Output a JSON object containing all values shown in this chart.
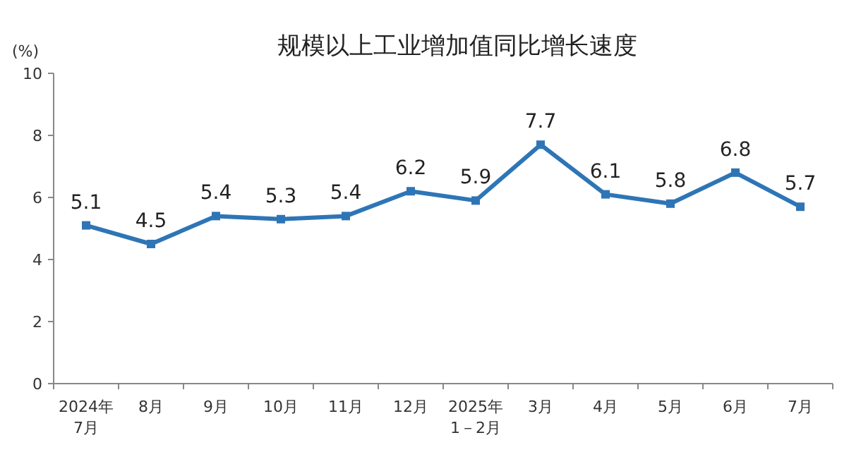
{
  "chart_data": {
    "type": "line",
    "title": "规模以上工业增加值同比增长速度",
    "ylabel": "(%)",
    "categories": [
      "2024年\n7月",
      "8月",
      "9月",
      "10月",
      "11月",
      "12月",
      "2025年\n1－2月",
      "3月",
      "4月",
      "5月",
      "6月",
      "7月"
    ],
    "series": [
      {
        "color": "#2e75b6",
        "values": [
          5.1,
          4.5,
          5.4,
          5.3,
          5.4,
          6.2,
          5.9,
          7.7,
          6.1,
          5.8,
          6.8,
          5.7
        ]
      }
    ],
    "ylim": [
      0,
      10
    ],
    "yticks": [
      0,
      2,
      4,
      6,
      8,
      10
    ],
    "marker": "square",
    "data_labels": true,
    "grid": false
  }
}
